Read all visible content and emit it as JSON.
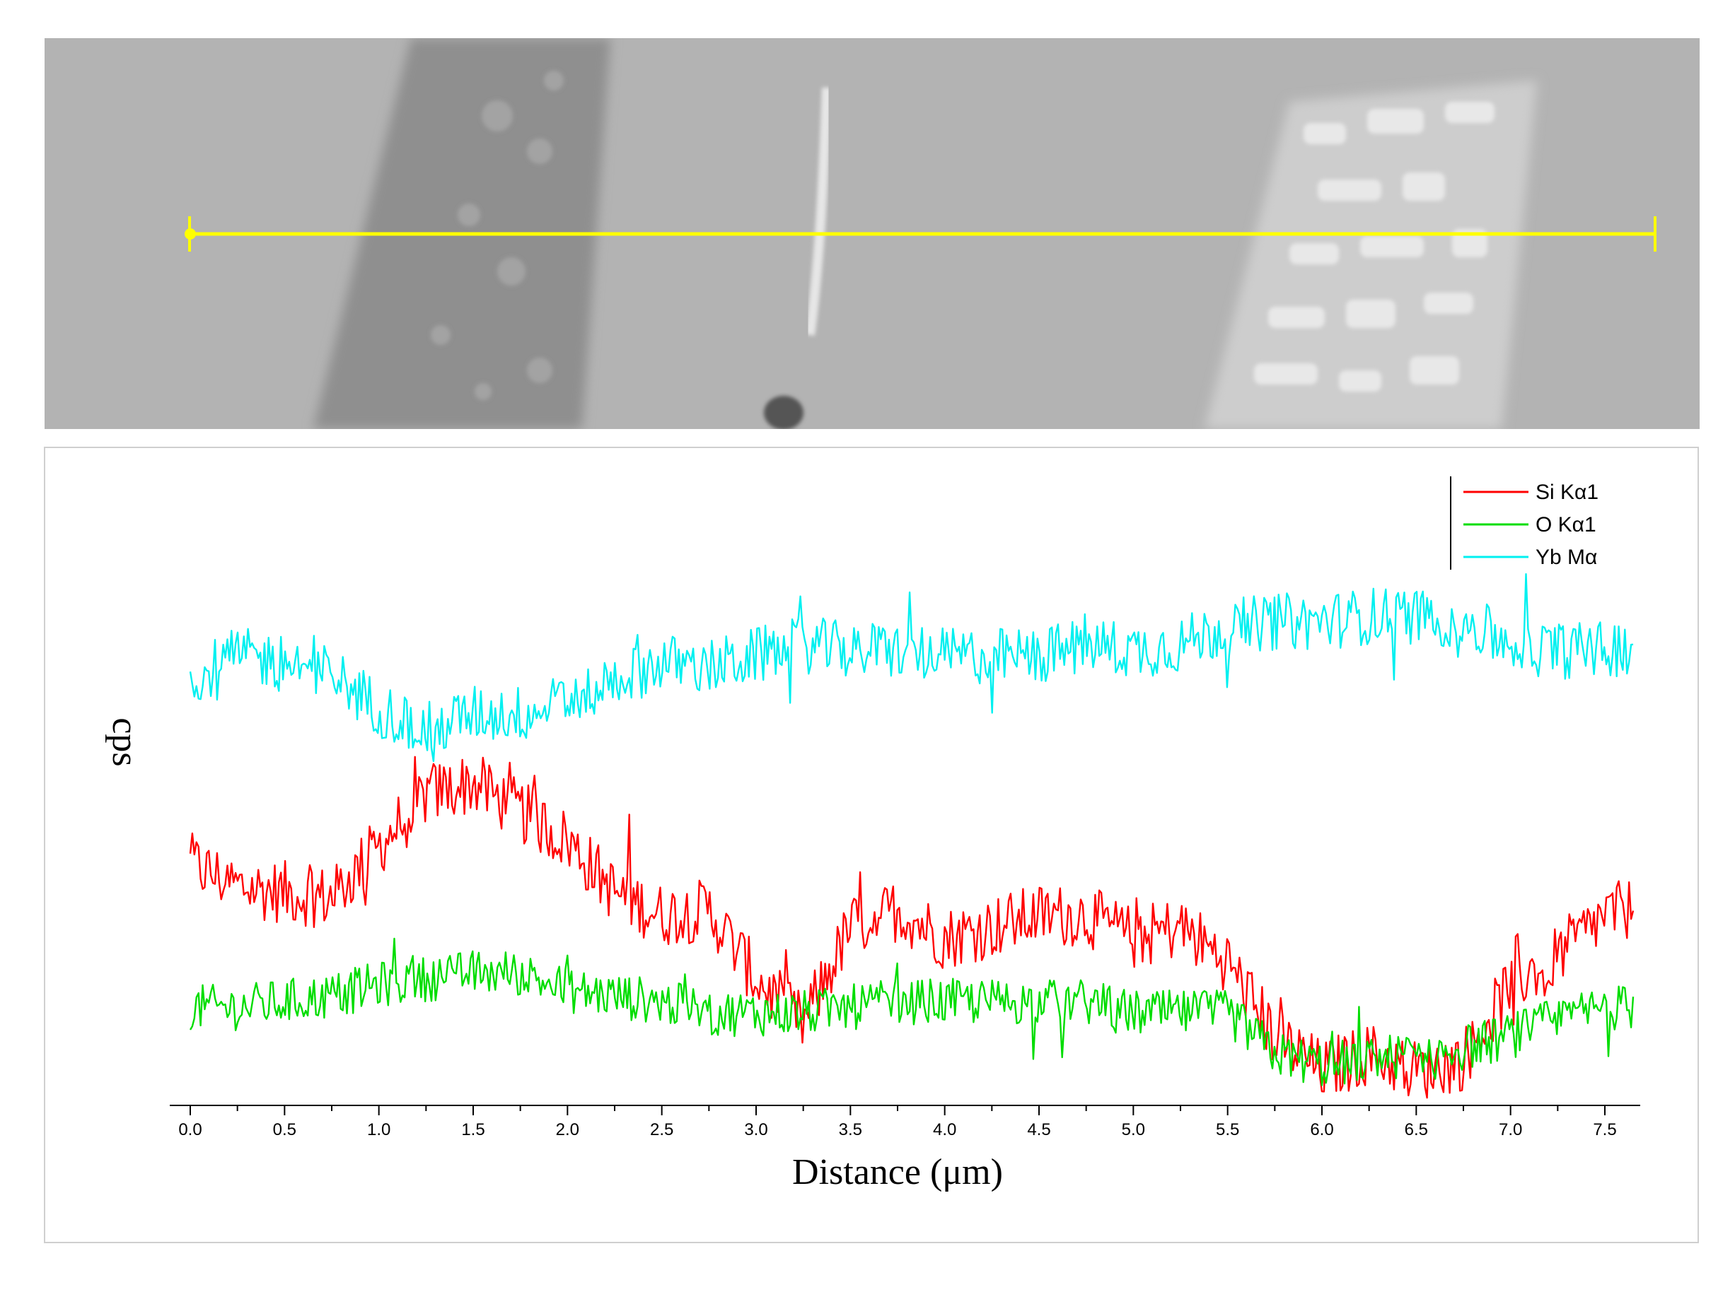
{
  "colors": {
    "si": "#ff0000",
    "o": "#00dd00",
    "yb": "#00f0f0",
    "scanline": "#ffff00",
    "axis": "#000000"
  },
  "sem_image": {
    "scan_line": {
      "start_um": 0.0,
      "end_um": 7.65
    }
  },
  "chart_data": {
    "type": "line",
    "title": "",
    "xlabel": "Distance (μm)",
    "ylabel": "cps",
    "xlim": [
      0.0,
      7.65
    ],
    "ylim": [
      0,
      100
    ],
    "x_ticks": [
      "0.0",
      "0.5",
      "1.0",
      "1.5",
      "2.0",
      "2.5",
      "3.0",
      "3.5",
      "4.0",
      "4.5",
      "5.0",
      "5.5",
      "6.0",
      "6.5",
      "7.0",
      "7.5"
    ],
    "x_tick_values": [
      0.0,
      0.5,
      1.0,
      1.5,
      2.0,
      2.5,
      3.0,
      3.5,
      4.0,
      4.5,
      5.0,
      5.5,
      6.0,
      6.5,
      7.0,
      7.5
    ],
    "legend": {
      "position": "top-right"
    },
    "series": [
      {
        "name": "Si Kα1",
        "color": "#ff0000",
        "x": [
          0.0,
          0.25,
          0.5,
          0.75,
          1.0,
          1.25,
          1.5,
          1.75,
          2.0,
          2.25,
          2.5,
          2.75,
          3.0,
          3.25,
          3.5,
          3.75,
          4.0,
          4.25,
          4.5,
          4.75,
          5.0,
          5.25,
          5.5,
          5.75,
          6.0,
          6.25,
          6.5,
          6.75,
          7.0,
          7.25,
          7.5,
          7.65
        ],
        "values": [
          42,
          38,
          37,
          36,
          45,
          54,
          56,
          51,
          46,
          37,
          33,
          34,
          22,
          14,
          31,
          34,
          29,
          31,
          33,
          33,
          29,
          31,
          25,
          12,
          6,
          9,
          6,
          8,
          21,
          26,
          33,
          34
        ]
      },
      {
        "name": "O Kα1",
        "color": "#00dd00",
        "x": [
          0.0,
          0.25,
          0.5,
          0.75,
          1.0,
          1.25,
          1.5,
          1.75,
          2.0,
          2.25,
          2.5,
          2.75,
          3.0,
          3.25,
          3.5,
          3.75,
          4.0,
          4.25,
          4.5,
          4.75,
          5.0,
          5.25,
          5.5,
          5.75,
          6.0,
          6.25,
          6.5,
          6.75,
          7.0,
          7.25,
          7.5,
          7.65
        ],
        "values": [
          17,
          17,
          18,
          19,
          21,
          22,
          23,
          23,
          20,
          19,
          18,
          16,
          16,
          16,
          17,
          18,
          18,
          18,
          18,
          18,
          16,
          16,
          16,
          9,
          7,
          8,
          9,
          10,
          12,
          15,
          17,
          17
        ]
      },
      {
        "name": "Yb Mα",
        "color": "#00f0f0",
        "x": [
          0.0,
          0.25,
          0.5,
          0.75,
          1.0,
          1.25,
          1.5,
          1.75,
          2.0,
          2.25,
          2.5,
          2.75,
          3.0,
          3.25,
          3.5,
          3.75,
          4.0,
          4.25,
          4.5,
          4.75,
          5.0,
          5.25,
          5.5,
          5.75,
          6.0,
          6.25,
          6.5,
          6.75,
          7.0,
          7.25,
          7.5,
          7.65
        ],
        "values": [
          74,
          78,
          77,
          75,
          69,
          65,
          68,
          68,
          70,
          74,
          77,
          76,
          78,
          80,
          79,
          79,
          78,
          78,
          78,
          80,
          79,
          80,
          83,
          84,
          84,
          85,
          85,
          84,
          80,
          79,
          79,
          80
        ]
      }
    ]
  }
}
